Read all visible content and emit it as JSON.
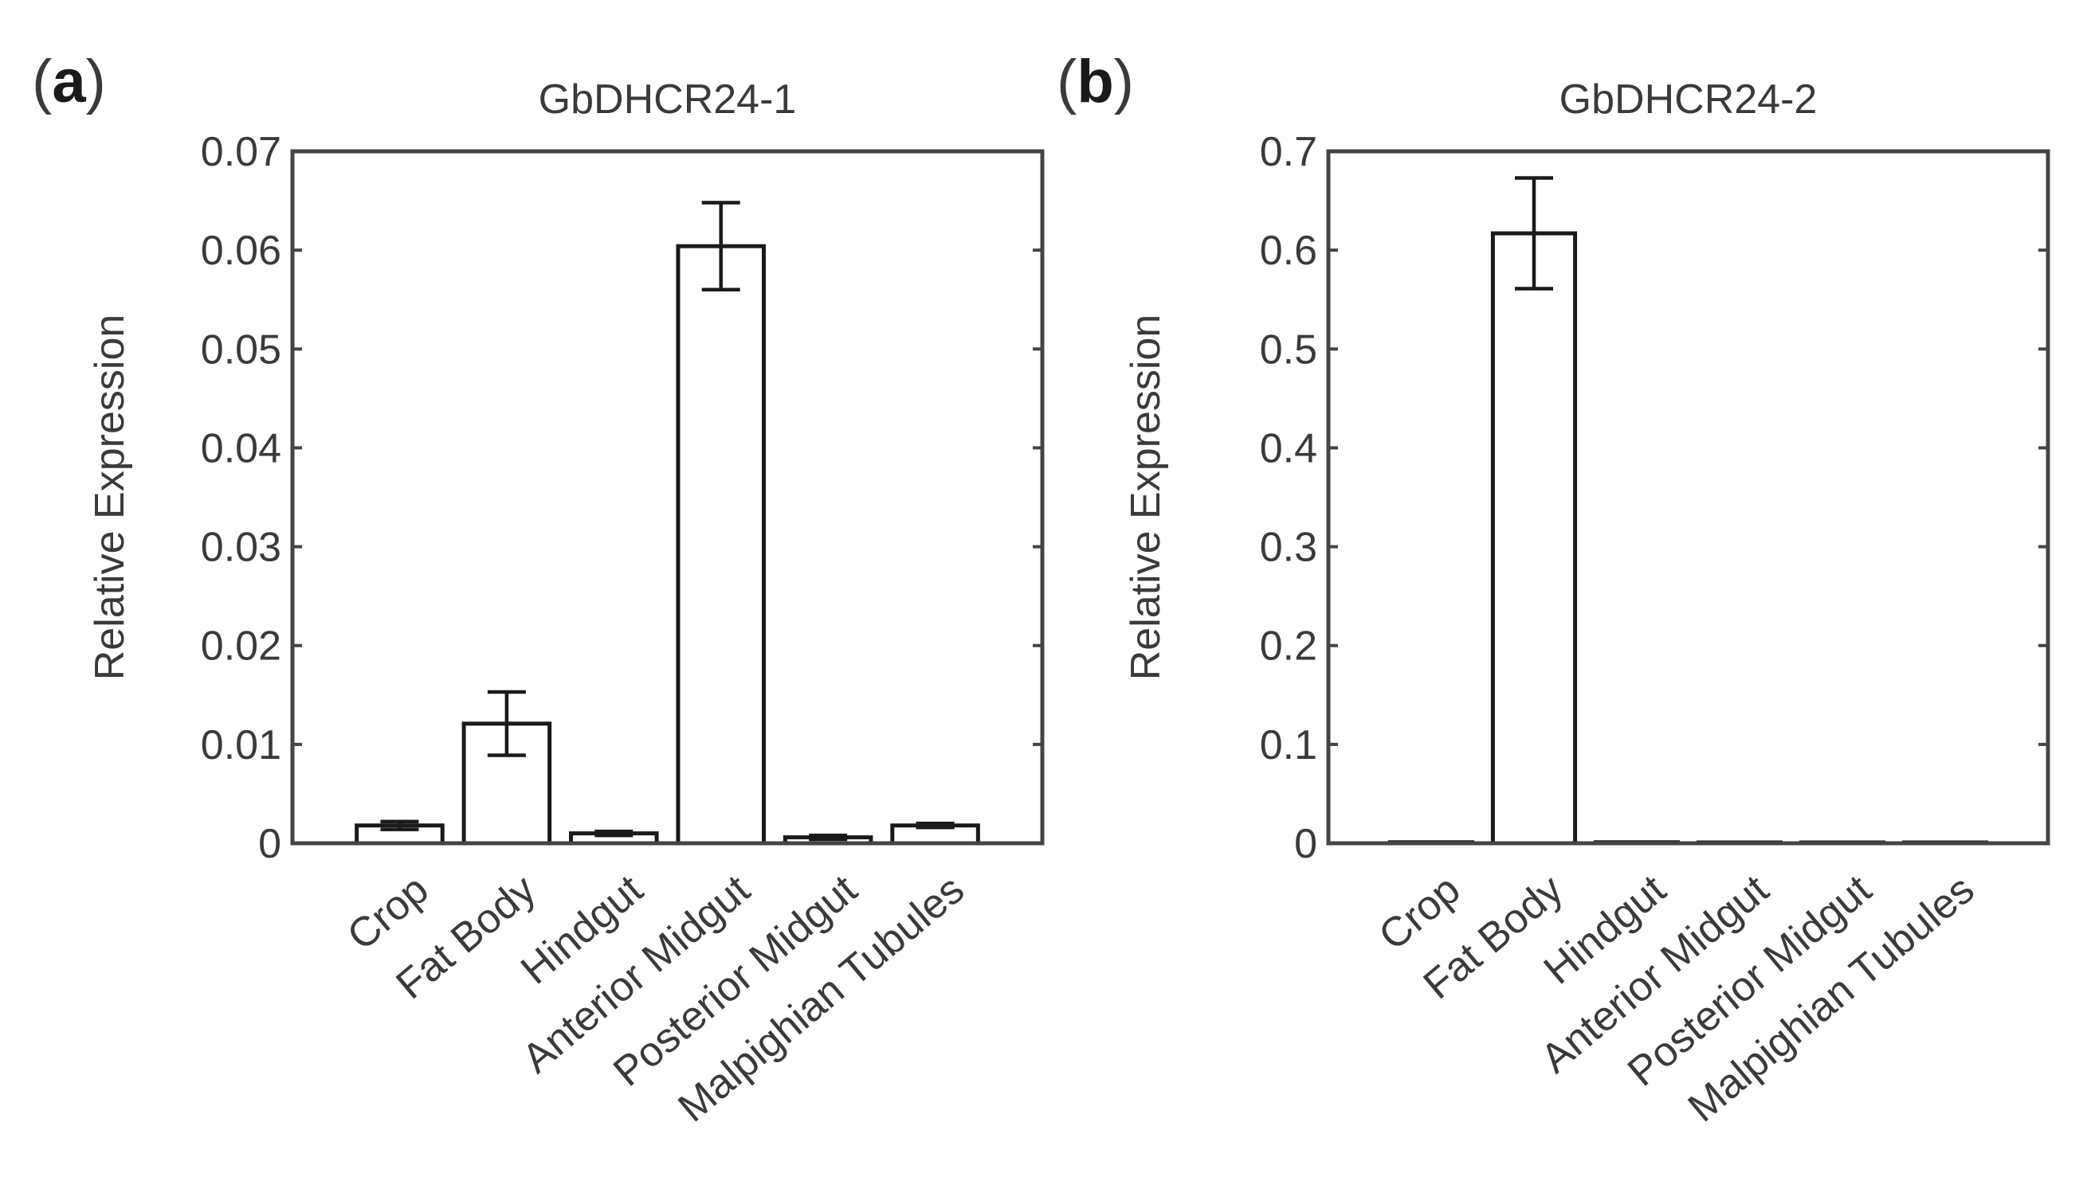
{
  "panel_labels": [
    "a",
    "b"
  ],
  "chart_data": [
    {
      "type": "bar",
      "panel": "a",
      "title": "GbDHCR24-1",
      "xlabel": "",
      "ylabel": "Relative Expression",
      "ylim": [
        0,
        0.07
      ],
      "yticks": [
        "0",
        "0.01",
        "0.02",
        "0.03",
        "0.04",
        "0.05",
        "0.06",
        "0.07"
      ],
      "yticks_values": [
        0,
        0.01,
        0.02,
        0.03,
        0.04,
        0.05,
        0.06,
        0.07
      ],
      "categories": [
        "Crop",
        "Fat Body",
        "Hindgut",
        "Anterior Midgut",
        "Posterior Midgut",
        "Malpighian Tubules"
      ],
      "values": [
        0.0018,
        0.0121,
        0.001,
        0.0604,
        0.0006,
        0.0018
      ],
      "errors": [
        0.0004,
        0.0032,
        0.0002,
        0.0044,
        0.0002,
        0.0002
      ],
      "grid": false,
      "legend": "none"
    },
    {
      "type": "bar",
      "panel": "b",
      "title": "GbDHCR24-2",
      "xlabel": "",
      "ylabel": "Relative Expression",
      "ylim": [
        0,
        0.7
      ],
      "yticks": [
        "0",
        "0.1",
        "0.2",
        "0.3",
        "0.4",
        "0.5",
        "0.6",
        "0.7"
      ],
      "yticks_values": [
        0,
        0.1,
        0.2,
        0.3,
        0.4,
        0.5,
        0.6,
        0.7
      ],
      "categories": [
        "Crop",
        "Fat Body",
        "Hindgut",
        "Anterior Midgut",
        "Posterior Midgut",
        "Malpighian Tubules"
      ],
      "values": [
        0.001,
        0.617,
        0.001,
        0.0003,
        0.0005,
        0.0005
      ],
      "errors": [
        0.0,
        0.056,
        0.0,
        0.0,
        0.0,
        0.0
      ],
      "grid": false,
      "legend": "none"
    }
  ]
}
